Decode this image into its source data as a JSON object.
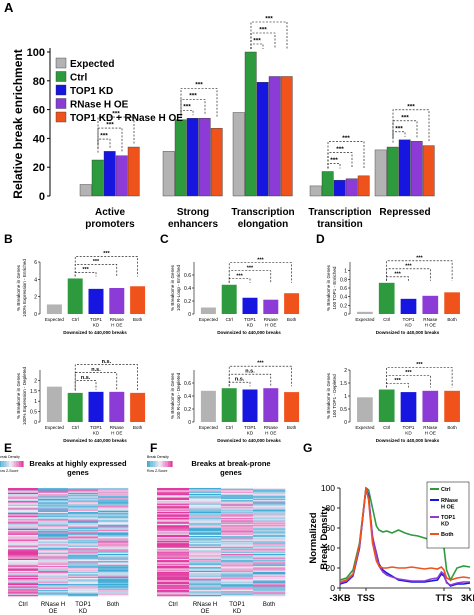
{
  "colors": {
    "expected": "#b3b3b3",
    "ctrl": "#2e9a3e",
    "top1": "#1616e0",
    "rnaseh": "#8c3bd6",
    "both": "#f0521c",
    "heat_low": "#3aa9d4",
    "heat_high": "#e23aa0"
  },
  "panel_labels": [
    "A",
    "B",
    "C",
    "D",
    "E",
    "F",
    "G"
  ],
  "chart_data": [
    {
      "id": "A",
      "type": "bar",
      "ylabel": "Relative break enrichment",
      "ylim": [
        0,
        100
      ],
      "yticks": [
        0,
        20,
        40,
        60,
        80,
        100
      ],
      "categories": [
        "Active\npromoters",
        "Strong\nenhancers",
        "Transcription\nelongation",
        "Transcription\ntransition",
        "Repressed"
      ],
      "series": [
        {
          "name": "Expected",
          "values": [
            8,
            31,
            58,
            7,
            32
          ]
        },
        {
          "name": "Ctrl",
          "values": [
            25,
            53,
            100,
            17,
            34
          ]
        },
        {
          "name": "TOP1 KD",
          "values": [
            31,
            54,
            79,
            11,
            39
          ]
        },
        {
          "name": "RNase H OE",
          "values": [
            28,
            54,
            83,
            12,
            38
          ]
        },
        {
          "name": "TOP1 KD + RNase H OE",
          "values": [
            34,
            47,
            83,
            14,
            35
          ]
        }
      ],
      "significance": "***",
      "legend": "top-left"
    },
    {
      "id": "B-top",
      "type": "bar",
      "ylabel": "% Breakome in Genes\n100% Expression - Enriched",
      "xlabel": "Downsized to 440,000 breaks",
      "categories": [
        "Expected",
        "Ctrl",
        "TOP1\nKD",
        "RNase\nH OE",
        "Both"
      ],
      "values": [
        1.1,
        4.1,
        2.9,
        3.0,
        3.2
      ],
      "ylim": [
        0,
        6
      ],
      "yticks": [
        0,
        2,
        4,
        6
      ],
      "brackets": [
        "***",
        "***",
        "***"
      ]
    },
    {
      "id": "B-bottom",
      "type": "bar",
      "ylabel": "% Breakome in Genes\n100% Expression - Depleted",
      "xlabel": "Downsized to 440,000 breaks",
      "categories": [
        "Expected",
        "Ctrl",
        "TOP1\nKD",
        "RNase\nH OE",
        "Both"
      ],
      "values": [
        1.7,
        1.4,
        1.45,
        1.45,
        1.4
      ],
      "ylim": [
        0,
        2.5
      ],
      "yticks": [
        0,
        0.5,
        1,
        1.5,
        2
      ],
      "brackets": [
        "n.s.",
        "n.s.",
        "n.s."
      ]
    },
    {
      "id": "C-top",
      "type": "bar",
      "ylabel": "% Breakome in Genes\n100 R-Loop - Enriched",
      "xlabel": "Downsized to 440,000 breaks",
      "categories": [
        "Expected",
        "Ctrl",
        "TOP1\nKD",
        "RNase\nH OE",
        "Both"
      ],
      "values": [
        0.1,
        0.45,
        0.25,
        0.22,
        0.32
      ],
      "ylim": [
        0,
        0.8
      ],
      "yticks": [
        0,
        0.2,
        0.4,
        0.6
      ],
      "brackets": [
        "***",
        "***",
        "***"
      ]
    },
    {
      "id": "C-bottom",
      "type": "bar",
      "ylabel": "% Breakome in Genes\n100 R-Loop - Depleted",
      "xlabel": "Downsized to 440,000 breaks",
      "categories": [
        "Expected",
        "Ctrl",
        "TOP1\nKD",
        "RNase\nH OE",
        "Both"
      ],
      "values": [
        0.48,
        0.52,
        0.5,
        0.52,
        0.46
      ],
      "ylim": [
        0,
        0.8
      ],
      "yticks": [
        0,
        0.2,
        0.4,
        0.6
      ],
      "brackets": [
        "n.s.",
        "n.s.",
        "***"
      ]
    },
    {
      "id": "D-top",
      "type": "bar",
      "ylabel": "% Breakome in Genes\n100 TOP1 - Enriched",
      "xlabel": "Downsized to 440,000 breaks",
      "categories": [
        "Expected",
        "Ctrl",
        "TOP1\nKD",
        "RNase\nH OE",
        "Both"
      ],
      "values": [
        0.05,
        0.72,
        0.35,
        0.42,
        0.5
      ],
      "ylim": [
        0,
        1.2
      ],
      "yticks": [
        0,
        0.2,
        0.4,
        0.6,
        0.8,
        1
      ],
      "brackets": [
        "***",
        "***",
        "***"
      ]
    },
    {
      "id": "D-bottom",
      "type": "bar",
      "ylabel": "% Breakome in Genes\n100 TOP1 - Depleted",
      "xlabel": "Downsized to 440,000 breaks",
      "categories": [
        "Expected",
        "Ctrl",
        "TOP1\nKD",
        "RNase\nH OE",
        "Both"
      ],
      "values": [
        0.95,
        1.25,
        1.15,
        1.2,
        1.2
      ],
      "ylim": [
        0,
        2
      ],
      "yticks": [
        0,
        0.5,
        1,
        1.5,
        2
      ],
      "brackets": [
        "***",
        "***",
        "***"
      ]
    },
    {
      "id": "E",
      "type": "heatmap",
      "title": "Breaks at highly expressed\ngenes",
      "legend_title": "Break Density",
      "legend_sub": "Row Z-Score",
      "columns": [
        "Ctrl",
        "RNase H\nOE",
        "TOP1\nKD",
        "Both"
      ]
    },
    {
      "id": "F",
      "type": "heatmap",
      "title": "Breaks at break-prone\ngenes",
      "legend_title": "Break Density",
      "legend_sub": "Row Z-Score",
      "columns": [
        "Ctrl",
        "RNase H\nOE",
        "TOP1\nKD",
        "Both"
      ]
    },
    {
      "id": "G",
      "type": "line",
      "ylabel": "Normalized\nBreak Density",
      "ylim": [
        0,
        100
      ],
      "yticks": [
        0,
        20,
        40,
        60,
        80,
        100
      ],
      "xticks": [
        "-3KB",
        "TSS",
        "TTS",
        "3KB"
      ],
      "x": [
        0,
        0.05,
        0.1,
        0.15,
        0.2,
        0.22,
        0.25,
        0.28,
        0.3,
        0.33,
        0.36,
        0.4,
        0.45,
        0.5,
        0.55,
        0.6,
        0.65,
        0.7,
        0.75,
        0.78,
        0.8,
        0.82,
        0.85,
        0.9,
        0.95,
        1
      ],
      "series": [
        {
          "name": "Ctrl",
          "values": [
            8,
            10,
            18,
            45,
            100,
            98,
            80,
            62,
            58,
            56,
            57,
            55,
            58,
            55,
            53,
            52,
            50,
            48,
            48,
            55,
            40,
            18,
            8,
            20,
            22,
            21
          ]
        },
        {
          "name": "RNase\nH OE",
          "values": [
            4,
            6,
            12,
            40,
            100,
            92,
            50,
            35,
            24,
            18,
            15,
            12,
            8,
            7,
            6,
            6,
            6,
            7,
            8,
            14,
            12,
            6,
            2,
            4,
            4,
            5
          ]
        },
        {
          "name": "TOP1\nKD",
          "values": [
            5,
            7,
            13,
            42,
            99,
            90,
            52,
            34,
            22,
            16,
            13,
            11,
            9,
            8,
            7,
            7,
            7,
            9,
            10,
            16,
            14,
            5,
            3,
            5,
            6,
            6
          ]
        },
        {
          "name": "Both",
          "values": [
            6,
            8,
            14,
            43,
            100,
            88,
            45,
            27,
            22,
            20,
            20,
            21,
            20,
            20,
            21,
            20,
            19,
            20,
            19,
            21,
            18,
            10,
            8,
            10,
            11,
            10
          ]
        }
      ],
      "legend": "top-right"
    }
  ]
}
